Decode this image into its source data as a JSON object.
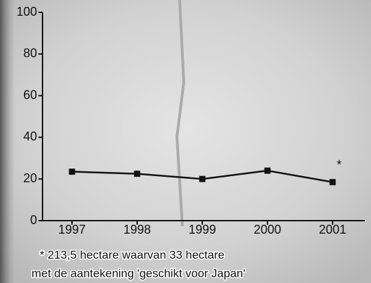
{
  "chart_data": {
    "type": "line",
    "categories": [
      "1997",
      "1998",
      "1999",
      "2000",
      "2001"
    ],
    "values": [
      23.5,
      22.5,
      20,
      24,
      18.5
    ],
    "color": "#111111",
    "ylim": [
      0,
      100
    ],
    "yticks": [
      0,
      20,
      40,
      60,
      80,
      100
    ],
    "annotation": "*",
    "footnote": [
      "* 213,5 hectare waarvan 33 hectare",
      "met de aantekening 'geschikt voor Japan'"
    ]
  }
}
